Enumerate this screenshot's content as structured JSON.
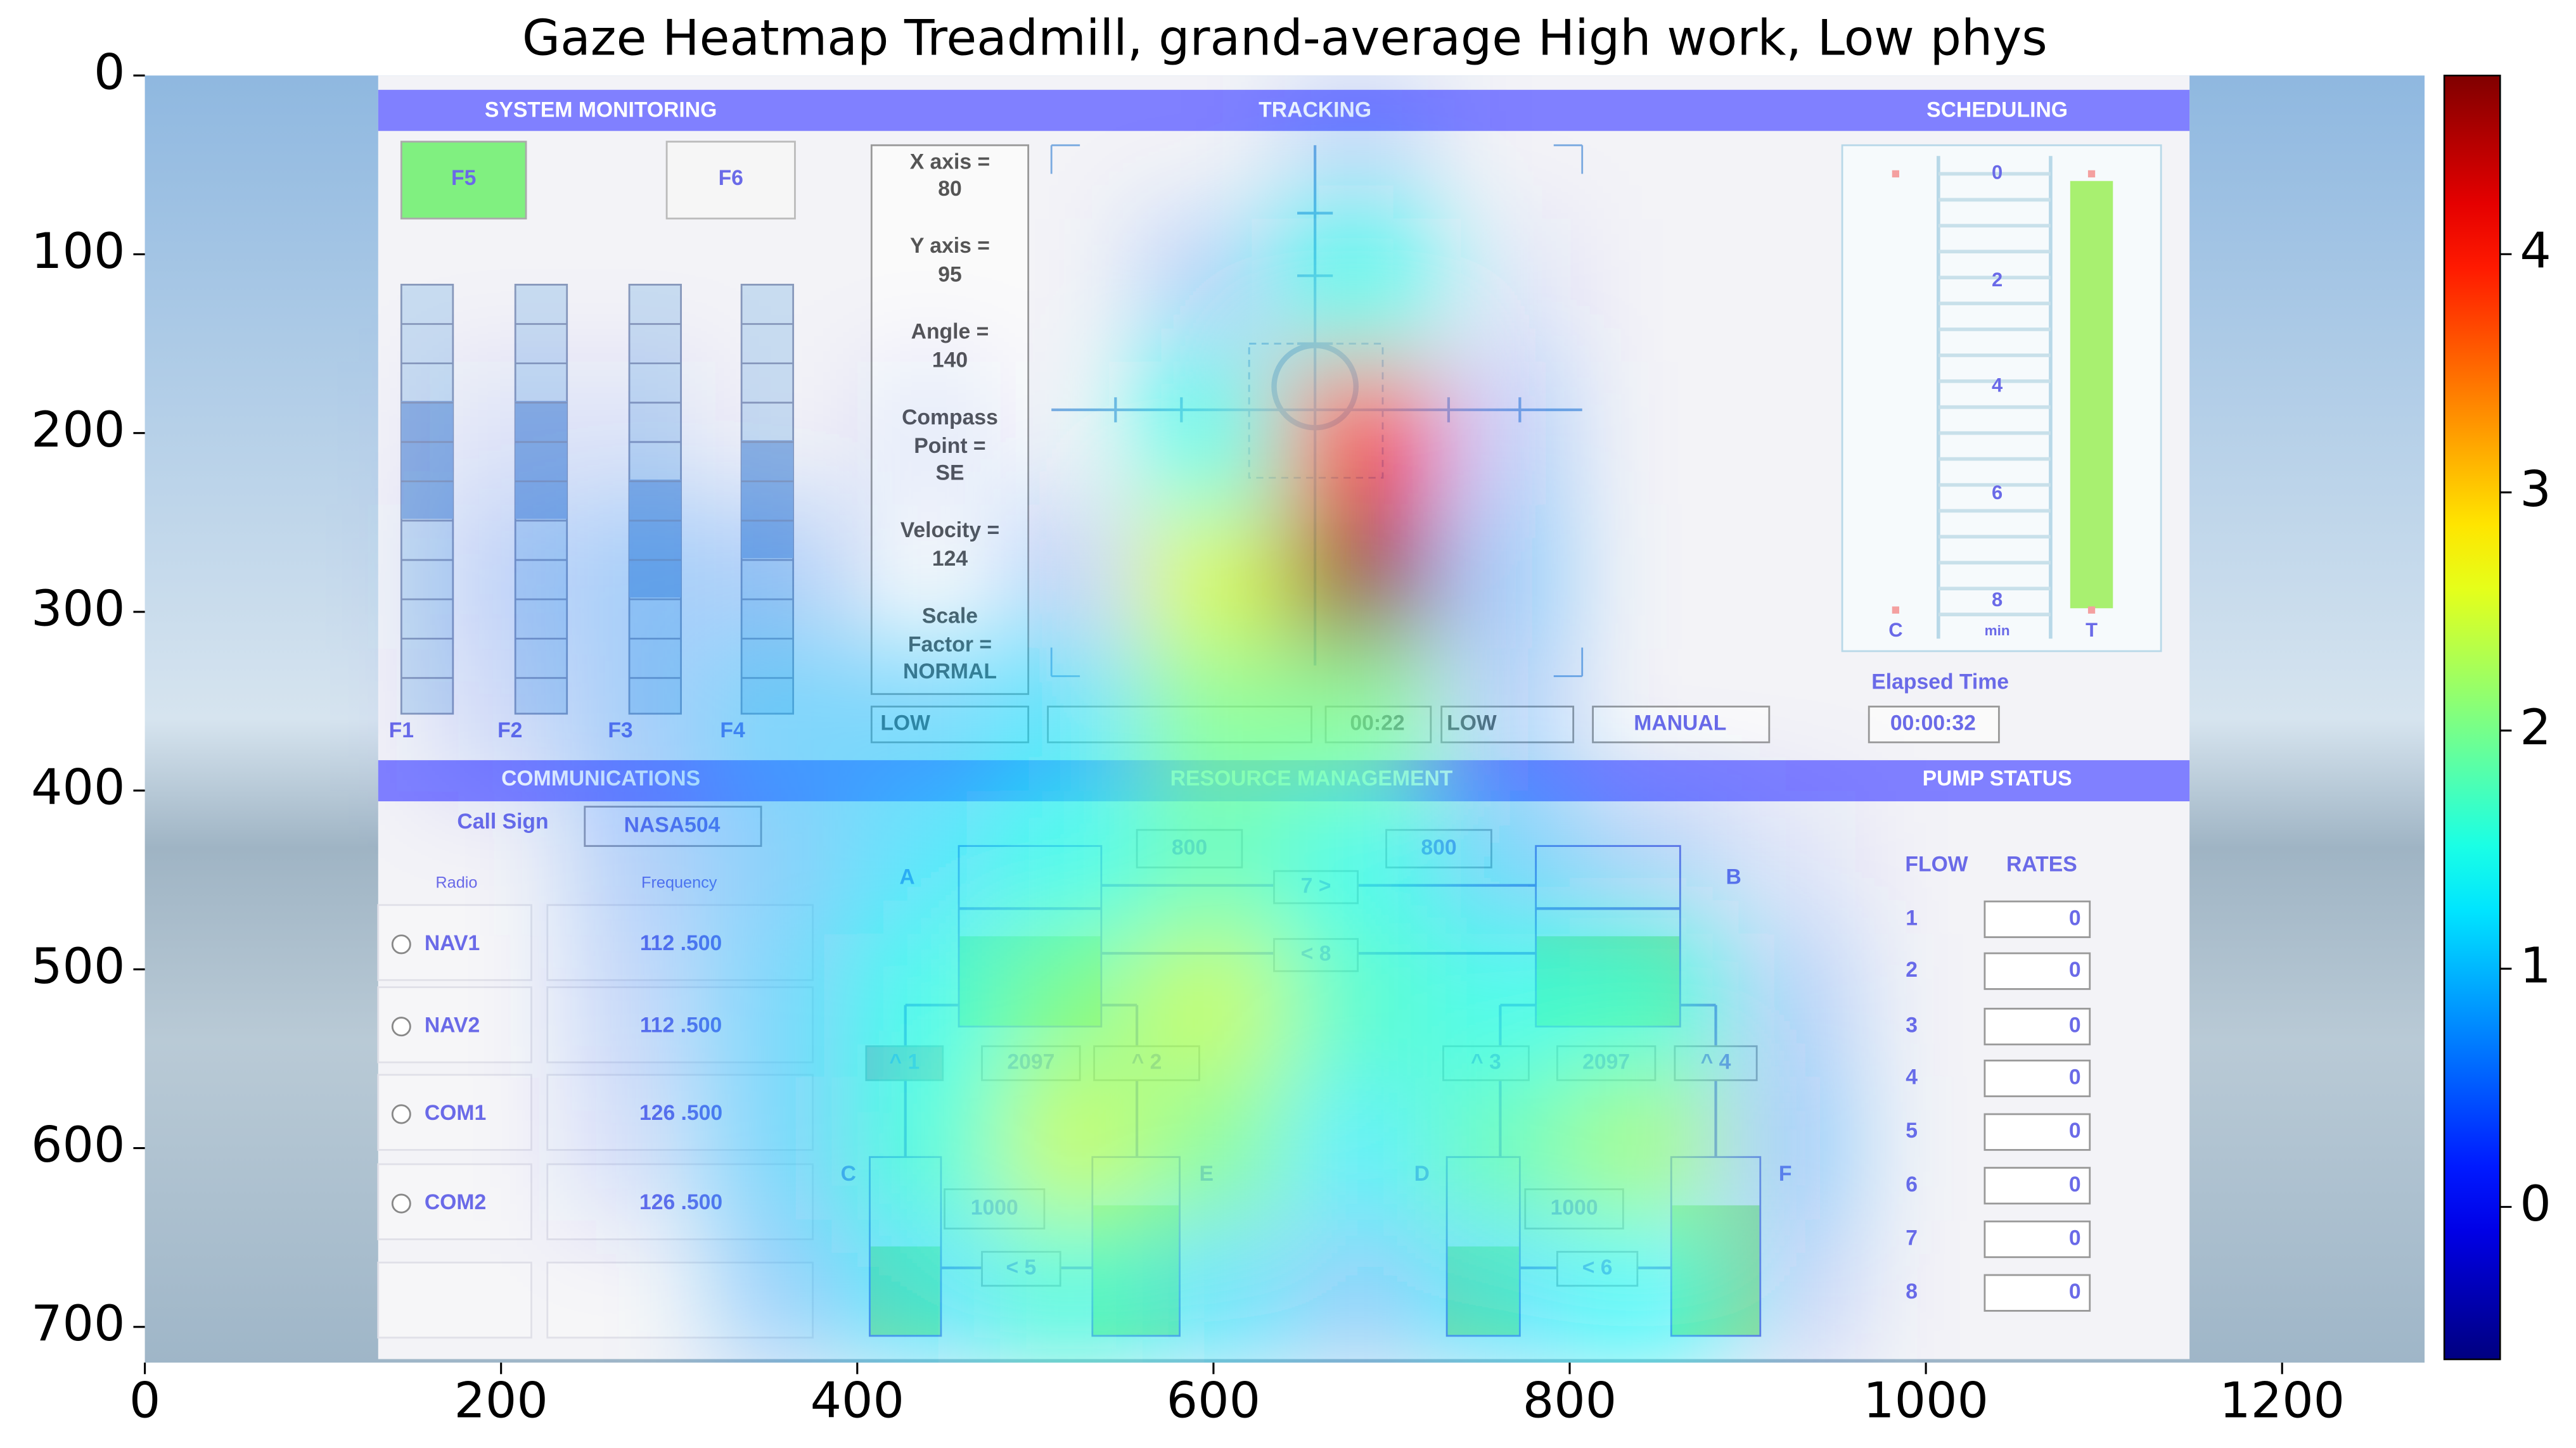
{
  "chart_data": {
    "type": "heatmap",
    "title": "Gaze Heatmap Treadmill, grand-average High work, Low phys",
    "xlim": [
      0,
      1280
    ],
    "ylim": [
      720,
      0
    ],
    "xticks": [
      0,
      200,
      400,
      600,
      800,
      1000,
      1200
    ],
    "yticks": [
      0,
      100,
      200,
      300,
      400,
      500,
      600,
      700
    ],
    "clim": [
      -0.64,
      4.75
    ],
    "cticks": [
      0,
      1,
      2,
      3,
      4
    ],
    "colormap": "jet",
    "values": [
      [
        0,
        0,
        0,
        0,
        0,
        0,
        0,
        0,
        0.5,
        0,
        0,
        0,
        0,
        0,
        0,
        0
      ],
      [
        0,
        0,
        0,
        0,
        0,
        0,
        0,
        0.6,
        1.5,
        0.3,
        0,
        0,
        0,
        0,
        0,
        0
      ],
      [
        0,
        0,
        0.3,
        0.3,
        0,
        0.3,
        0,
        1.5,
        4.0,
        0.6,
        0,
        0,
        0,
        0,
        0,
        0
      ],
      [
        0,
        0,
        0.5,
        0.7,
        0.6,
        0,
        0.6,
        2.5,
        4.7,
        0.8,
        0,
        0,
        0,
        0,
        0,
        0
      ],
      [
        0,
        0,
        0.4,
        0.7,
        1.0,
        1.0,
        1.2,
        2.0,
        2.0,
        0.6,
        0,
        0,
        0,
        0,
        0,
        0
      ],
      [
        0,
        0,
        0,
        0.6,
        0.9,
        1.2,
        1.5,
        1.8,
        1.5,
        1.0,
        0.6,
        0.3,
        0,
        0,
        0,
        0
      ],
      [
        0,
        0,
        0,
        0.5,
        1.0,
        1.5,
        2.0,
        2.4,
        1.7,
        1.5,
        1.6,
        0.6,
        0,
        0,
        0,
        0
      ],
      [
        0,
        0,
        0,
        0.4,
        1.0,
        1.6,
        2.4,
        2.0,
        1.3,
        1.8,
        2.2,
        0.8,
        0,
        0,
        0,
        0
      ],
      [
        0,
        0,
        0,
        0,
        0.8,
        1.2,
        1.6,
        1.2,
        0.8,
        1.2,
        1.4,
        0.5,
        0,
        0,
        0,
        0
      ]
    ]
  },
  "screenshot": {
    "headers": [
      "SYSTEM MONITORING",
      "TRACKING",
      "SCHEDULING",
      "COMMUNICATIONS",
      "RESOURCE MANAGEMENT",
      "PUMP STATUS"
    ],
    "monitor_buttons": [
      "F5",
      "F6"
    ],
    "gauge_labels": [
      "F1",
      "F2",
      "F3",
      "F4"
    ],
    "tracking_info": [
      "X axis =",
      "80",
      "Y axis =",
      "95",
      "Angle =",
      "140",
      "Compass",
      "Point =",
      "SE",
      "Velocity =",
      "124",
      "Scale",
      "Factor =",
      "NORMAL"
    ],
    "tracking_status": [
      "LOW",
      "00:22",
      "LOW",
      "MANUAL"
    ],
    "elapsed_label": "Elapsed Time",
    "elapsed": "00:00:32",
    "schedule_ticks": [
      "0",
      "2",
      "4",
      "6",
      "8"
    ],
    "schedule_labels": [
      "C",
      "min",
      "T"
    ],
    "call_sign_label": "Call Sign",
    "call_sign": "NASA504",
    "comm_headers": [
      "Radio",
      "Frequency"
    ],
    "radios": [
      {
        "name": "NAV1",
        "frequency": "112 .500"
      },
      {
        "name": "NAV2",
        "frequency": "112 .500"
      },
      {
        "name": "COM1",
        "frequency": "126 .500"
      },
      {
        "name": "COM2",
        "frequency": "126 .500"
      }
    ],
    "tanks": [
      "A",
      "B",
      "C",
      "E",
      "D",
      "F"
    ],
    "resource_labels": [
      "800",
      "800",
      "7 >",
      "< 8",
      "^ 1",
      "2097",
      "^ 2",
      "^ 3",
      "2097",
      "^ 4",
      "1000",
      "1000",
      "< 5",
      "< 6"
    ],
    "pump_headers": [
      "FLOW",
      "RATES"
    ],
    "pumps": [
      {
        "id": "1",
        "rate": "0"
      },
      {
        "id": "2",
        "rate": "0"
      },
      {
        "id": "3",
        "rate": "0"
      },
      {
        "id": "4",
        "rate": "0"
      },
      {
        "id": "5",
        "rate": "0"
      },
      {
        "id": "6",
        "rate": "0"
      },
      {
        "id": "7",
        "rate": "0"
      },
      {
        "id": "8",
        "rate": "0"
      }
    ]
  }
}
